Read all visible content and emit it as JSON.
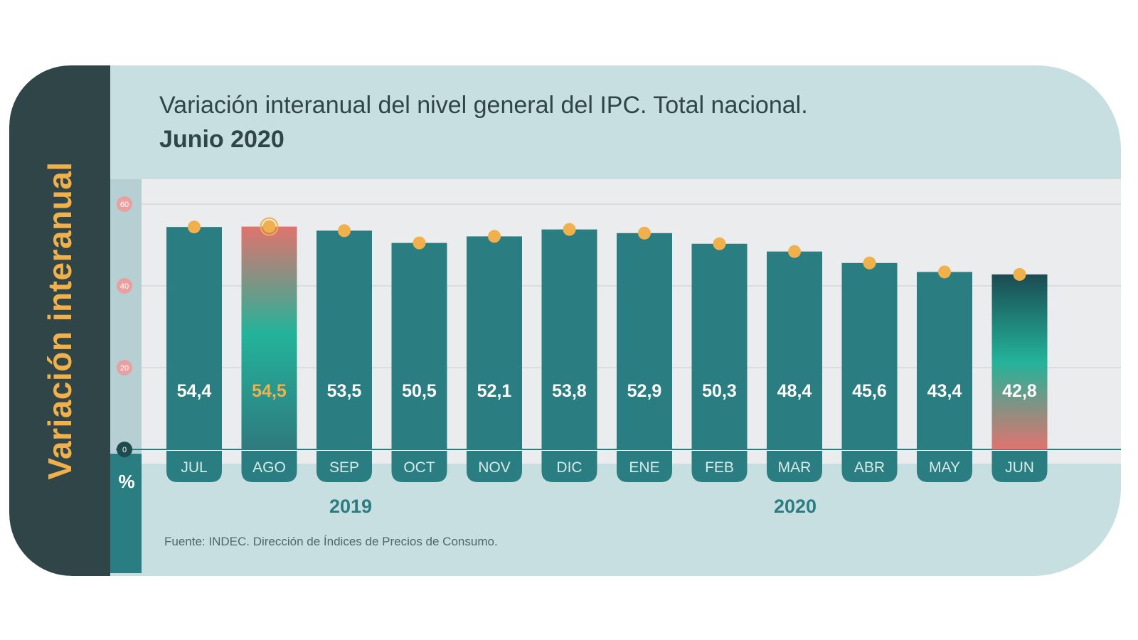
{
  "side_label": "Variación interanual",
  "title_line1": "Variación interanual del nivel general del IPC. Total nacional.",
  "title_line2": "Junio 2020",
  "y_unit": "%",
  "years": [
    "2019",
    "2020"
  ],
  "source": "Fuente: INDEC. Dirección de Índices de Precios de Consumo.",
  "colors": {
    "bar": "#2a7d80",
    "dot": "#f0b04c",
    "highlight_label": "#f0b04c",
    "tick_badge": "#e8a0a0",
    "side_panel": "#2f4548",
    "card": "#c8dfe2"
  },
  "chart_data": {
    "type": "bar",
    "categories": [
      "JUL",
      "AGO",
      "SEP",
      "OCT",
      "NOV",
      "DIC",
      "ENE",
      "FEB",
      "MAR",
      "ABR",
      "MAY",
      "JUN"
    ],
    "values": [
      54.4,
      54.5,
      53.5,
      50.5,
      52.1,
      53.8,
      52.9,
      50.3,
      48.4,
      45.6,
      43.4,
      42.8
    ],
    "value_labels": [
      "54,4",
      "54,5",
      "53,5",
      "50,5",
      "52,1",
      "53,8",
      "52,9",
      "50,3",
      "48,4",
      "45,6",
      "43,4",
      "42,8"
    ],
    "highlight": [
      "AGO",
      "JUN"
    ],
    "yticks": [
      0,
      20,
      40,
      60
    ],
    "ylim": [
      0,
      60
    ],
    "ylabel": "%",
    "grid": true,
    "legend": "none"
  }
}
